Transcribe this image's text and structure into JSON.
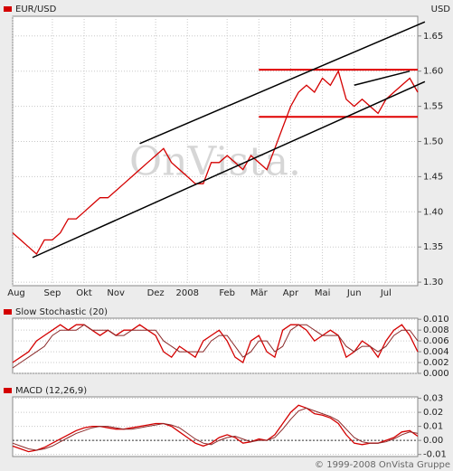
{
  "watermark": "OnVista.",
  "footer": "© 1999-2008 OnVista Gruppe",
  "chart_data": [
    {
      "type": "line",
      "y_label": "USD",
      "categories": [
        "Aug",
        null,
        null,
        null,
        null,
        "Sep",
        null,
        null,
        null,
        "Okt",
        null,
        null,
        null,
        "Nov",
        null,
        null,
        null,
        null,
        "Dez",
        null,
        null,
        null,
        "2008",
        null,
        null,
        null,
        null,
        "Feb",
        null,
        null,
        null,
        "Mär",
        null,
        null,
        null,
        "Apr",
        null,
        null,
        null,
        "Mai",
        null,
        null,
        null,
        "Jun",
        null,
        null,
        null,
        "Jul",
        null,
        null,
        null,
        null
      ],
      "series": [
        {
          "name": "EUR/USD",
          "color": "#d40000",
          "values": [
            1.37,
            1.36,
            1.35,
            1.34,
            1.36,
            1.36,
            1.37,
            1.39,
            1.39,
            1.4,
            1.41,
            1.42,
            1.42,
            1.43,
            1.44,
            1.45,
            1.46,
            1.47,
            1.48,
            1.49,
            1.47,
            1.46,
            1.45,
            1.44,
            1.44,
            1.47,
            1.47,
            1.48,
            1.47,
            1.46,
            1.48,
            1.47,
            1.46,
            1.49,
            1.52,
            1.55,
            1.57,
            1.58,
            1.57,
            1.59,
            1.58,
            1.6,
            1.56,
            1.55,
            1.56,
            1.55,
            1.54,
            1.56,
            1.57,
            1.58,
            1.59,
            1.57
          ]
        }
      ],
      "levels": [
        1.602,
        1.535
      ],
      "level_color": "#e00000",
      "trend_lines": [
        {
          "x": [
            2.5,
            51.9
          ],
          "y": [
            1.335,
            1.585
          ]
        },
        {
          "x": [
            16,
            51.9
          ],
          "y": [
            1.497,
            1.67
          ]
        },
        {
          "x": [
            43,
            50
          ],
          "y": [
            1.58,
            1.6
          ]
        }
      ],
      "trend_color": "#000000",
      "ylim": [
        1.295,
        1.678
      ],
      "yticks": [
        {
          "value": 1.3,
          "label": "1.30"
        },
        1.35,
        {
          "value": 1.4,
          "label": "1.40"
        },
        1.45,
        {
          "value": 1.5,
          "label": "1.50"
        },
        1.55,
        {
          "value": 1.6,
          "label": "1.60"
        },
        1.65
      ],
      "grid": true
    },
    {
      "type": "line",
      "series": [
        {
          "name": "Slow Stochastic (20)",
          "color": "#d40000",
          "values": [
            0.002,
            0.003,
            0.004,
            0.006,
            0.007,
            0.008,
            0.009,
            0.008,
            0.009,
            0.009,
            0.008,
            0.007,
            0.008,
            0.007,
            0.008,
            0.008,
            0.009,
            0.008,
            0.007,
            0.004,
            0.003,
            0.005,
            0.004,
            0.003,
            0.006,
            0.007,
            0.008,
            0.006,
            0.003,
            0.002,
            0.006,
            0.007,
            0.004,
            0.003,
            0.008,
            0.009,
            0.009,
            0.008,
            0.006,
            0.007,
            0.008,
            0.007,
            0.003,
            0.004,
            0.006,
            0.005,
            0.003,
            0.006,
            0.008,
            0.009,
            0.007,
            0.004
          ]
        },
        {
          "color": "#8b2a2a",
          "values": [
            0.001,
            0.002,
            0.003,
            0.004,
            0.005,
            0.007,
            0.008,
            0.008,
            0.008,
            0.009,
            0.008,
            0.008,
            0.008,
            0.007,
            0.007,
            0.008,
            0.008,
            0.008,
            0.008,
            0.006,
            0.005,
            0.004,
            0.004,
            0.004,
            0.004,
            0.006,
            0.007,
            0.007,
            0.005,
            0.003,
            0.004,
            0.006,
            0.006,
            0.004,
            0.005,
            0.008,
            0.009,
            0.009,
            0.008,
            0.007,
            0.007,
            0.007,
            0.005,
            0.004,
            0.005,
            0.005,
            0.004,
            0.005,
            0.007,
            0.008,
            0.008,
            0.006
          ]
        }
      ],
      "ylim": [
        0,
        0.0102
      ],
      "yticks": [
        {
          "value": 0.01,
          "label": "0.010"
        },
        {
          "value": 0.008,
          "label": "0.008"
        },
        {
          "value": 0.006,
          "label": "0.006"
        },
        {
          "value": 0.004,
          "label": "0.004"
        },
        {
          "value": 0.002,
          "label": "0.002"
        },
        {
          "value": 0,
          "label": "0.000"
        }
      ],
      "grid": true
    },
    {
      "type": "line",
      "series": [
        {
          "name": "MACD (12,26,9)",
          "color": "#d40000",
          "values": [
            -0.004,
            -0.006,
            -0.008,
            -0.007,
            -0.005,
            -0.002,
            0.001,
            0.004,
            0.007,
            0.009,
            0.01,
            0.01,
            0.009,
            0.008,
            0.008,
            0.009,
            0.01,
            0.011,
            0.012,
            0.012,
            0.01,
            0.006,
            0.002,
            -0.002,
            -0.004,
            -0.002,
            0.002,
            0.004,
            0.002,
            -0.002,
            -0.001,
            0.001,
            0.0,
            0.004,
            0.012,
            0.02,
            0.025,
            0.023,
            0.019,
            0.018,
            0.016,
            0.012,
            0.004,
            -0.002,
            -0.003,
            -0.002,
            -0.002,
            0.0,
            0.002,
            0.006,
            0.007,
            0.003
          ]
        },
        {
          "color": "#8b2a2a",
          "values": [
            -0.002,
            -0.004,
            -0.006,
            -0.007,
            -0.006,
            -0.004,
            -0.001,
            0.002,
            0.005,
            0.007,
            0.009,
            0.01,
            0.01,
            0.009,
            0.008,
            0.008,
            0.009,
            0.01,
            0.011,
            0.012,
            0.011,
            0.009,
            0.005,
            0.001,
            -0.002,
            -0.003,
            0.0,
            0.002,
            0.003,
            0.001,
            -0.001,
            0.0,
            0.0,
            0.002,
            0.008,
            0.015,
            0.021,
            0.023,
            0.021,
            0.019,
            0.017,
            0.014,
            0.008,
            0.002,
            -0.001,
            -0.002,
            -0.002,
            -0.001,
            0.001,
            0.004,
            0.006,
            0.005
          ]
        }
      ],
      "reference_lines": [
        0
      ],
      "ylim": [
        -0.0115,
        0.031
      ],
      "yticks": [
        0.03,
        0.02,
        0.01,
        {
          "value": 0,
          "label": "0.00"
        },
        -0.01
      ],
      "grid": true
    }
  ]
}
